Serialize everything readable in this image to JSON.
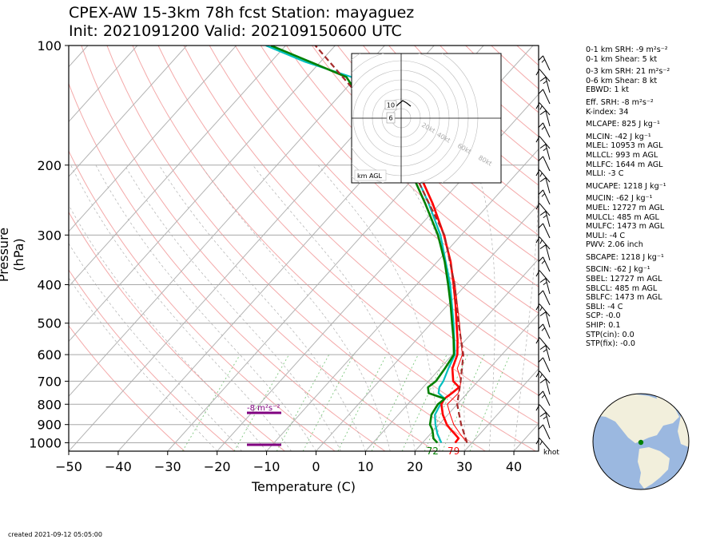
{
  "header": {
    "title_line1": "CPEX-AW 15-3km  78h fcst  Station: mayaguez",
    "title_line2": "Init: 2021091200  Valid: 202109150600 UTC"
  },
  "footer": {
    "created": "created 2021-09-12 05:05:00"
  },
  "chart_data": {
    "type": "line",
    "subtype": "skew-T log-P",
    "xlabel": "Temperature (C)",
    "ylabel": "Pressure (hPa)",
    "x_ticks": [
      -50,
      -40,
      -30,
      -20,
      -10,
      0,
      10,
      20,
      30,
      40
    ],
    "y_ticks": [
      100,
      200,
      300,
      400,
      500,
      600,
      700,
      800,
      900,
      1000
    ],
    "xlim": [
      -50,
      45
    ],
    "ylim": [
      1050,
      100
    ],
    "y_scale": "log",
    "grid": true,
    "series": [
      {
        "name": "Temperature",
        "color": "#ff0000",
        "points": [
          [
            1000,
            26.6
          ],
          [
            975,
            26.5
          ],
          [
            950,
            24.9
          ],
          [
            925,
            23.2
          ],
          [
            900,
            21.6
          ],
          [
            850,
            19.0
          ],
          [
            800,
            16.8
          ],
          [
            775,
            16.4
          ],
          [
            750,
            16.9
          ],
          [
            725,
            17.3
          ],
          [
            700,
            15.0
          ],
          [
            650,
            12.5
          ],
          [
            600,
            11.0
          ],
          [
            550,
            8.3
          ],
          [
            500,
            5.1
          ],
          [
            450,
            1.6
          ],
          [
            400,
            -2.5
          ],
          [
            350,
            -7.3
          ],
          [
            300,
            -13.5
          ],
          [
            250,
            -21.5
          ],
          [
            200,
            -32.0
          ],
          [
            150,
            -45.0
          ]
        ]
      },
      {
        "name": "Virtual temperature",
        "color": "#ff0000",
        "points": [
          [
            1000,
            29.0
          ],
          [
            950,
            26.0
          ],
          [
            900,
            23.0
          ],
          [
            850,
            20.5
          ],
          [
            800,
            18.0
          ],
          [
            750,
            18.2
          ],
          [
            700,
            16.6
          ],
          [
            650,
            13.5
          ],
          [
            600,
            12.0
          ],
          [
            500,
            5.7
          ],
          [
            400,
            -2.2
          ],
          [
            300,
            -13.3
          ]
        ]
      },
      {
        "name": "Dewpoint",
        "color": "#008000",
        "points": [
          [
            1000,
            23.0
          ],
          [
            975,
            21.4
          ],
          [
            950,
            20.5
          ],
          [
            925,
            19.5
          ],
          [
            900,
            18.2
          ],
          [
            850,
            16.7
          ],
          [
            800,
            16.1
          ],
          [
            775,
            16.5
          ],
          [
            750,
            12.2
          ],
          [
            725,
            11.0
          ],
          [
            700,
            11.5
          ],
          [
            650,
            11.0
          ],
          [
            600,
            10.3
          ],
          [
            550,
            7.5
          ],
          [
            500,
            4.2
          ],
          [
            450,
            0.6
          ],
          [
            400,
            -3.6
          ],
          [
            350,
            -8.5
          ],
          [
            300,
            -14.7
          ],
          [
            250,
            -23.0
          ],
          [
            200,
            -33.5
          ],
          [
            150,
            -50.0
          ],
          [
            120,
            -62.0
          ],
          [
            110,
            -72.0
          ],
          [
            100,
            -83.0
          ]
        ]
      },
      {
        "name": "Wet-bulb",
        "color": "#00bfbf",
        "points": [
          [
            1000,
            23.8
          ],
          [
            950,
            21.4
          ],
          [
            900,
            19.3
          ],
          [
            850,
            17.4
          ],
          [
            800,
            16.6
          ],
          [
            775,
            16.5
          ],
          [
            750,
            14.2
          ],
          [
            725,
            13.3
          ],
          [
            700,
            13.0
          ],
          [
            650,
            11.7
          ],
          [
            600,
            10.5
          ],
          [
            500,
            4.5
          ],
          [
            400,
            -3.2
          ],
          [
            300,
            -14.2
          ],
          [
            250,
            -22.3
          ],
          [
            200,
            -32.8
          ],
          [
            150,
            -47.5
          ],
          [
            120,
            -61.0
          ],
          [
            110,
            -73.0
          ],
          [
            100,
            -84.0
          ]
        ]
      },
      {
        "name": "Parcel",
        "color": "#a52a2a",
        "dashed": true,
        "points": [
          [
            1000,
            29.0
          ],
          [
            900,
            24.5
          ],
          [
            800,
            20.0
          ],
          [
            700,
            16.5
          ],
          [
            600,
            12.2
          ],
          [
            500,
            5.5
          ],
          [
            400,
            -2.3
          ],
          [
            300,
            -13.4
          ],
          [
            200,
            -33.0
          ],
          [
            150,
            -49.0
          ],
          [
            100,
            -74.0
          ]
        ]
      }
    ],
    "surface_labels": {
      "temperature_f": "79",
      "dewpoint_f": "72"
    },
    "srh_annotation": "-8 m²s⁻²",
    "wind_unit_label": "knot",
    "hodograph": {
      "ring_labels": [
        "20kt",
        "40kt",
        "60kt",
        "80kt"
      ],
      "height_markers": [
        "10",
        "6"
      ],
      "footnote": "km AGL"
    }
  },
  "stats": [
    "0-1 km SRH: -9 m²s⁻²",
    "0-1 km Shear: 5 kt",
    "0-3 km SRH: 21 m²s⁻²",
    "0-6 km Shear: 8 kt",
    "EBWD: 1 kt",
    "Eff. SRH: -8 m²s⁻²",
    "K-index: 34",
    "MLCAPE: 825 J kg⁻¹",
    "MLCIN: -42 J kg⁻¹",
    "MLEL: 10953 m AGL",
    "MLLCL: 993 m AGL",
    "MLLFC: 1644 m AGL",
    "MLLI: -3 C",
    "MUCAPE: 1218 J kg⁻¹",
    "MUCIN: -62 J kg⁻¹",
    "MUEL: 12727 m AGL",
    "MULCL: 485 m AGL",
    "MULFC: 1473 m AGL",
    "MULI: -4 C",
    "PWV: 2.06 inch",
    "SBCAPE: 1218 J kg⁻¹",
    "SBCIN: -62 J kg⁻¹",
    "SBEL: 12727 m AGL",
    "SBLCL: 485 m AGL",
    "SBLFC: 1473 m AGL",
    "SBLI: -4 C",
    "SCP: -0.0",
    "SHIP: 0.1",
    "STP(cin): 0.0",
    "STP(fix): -0.0"
  ]
}
